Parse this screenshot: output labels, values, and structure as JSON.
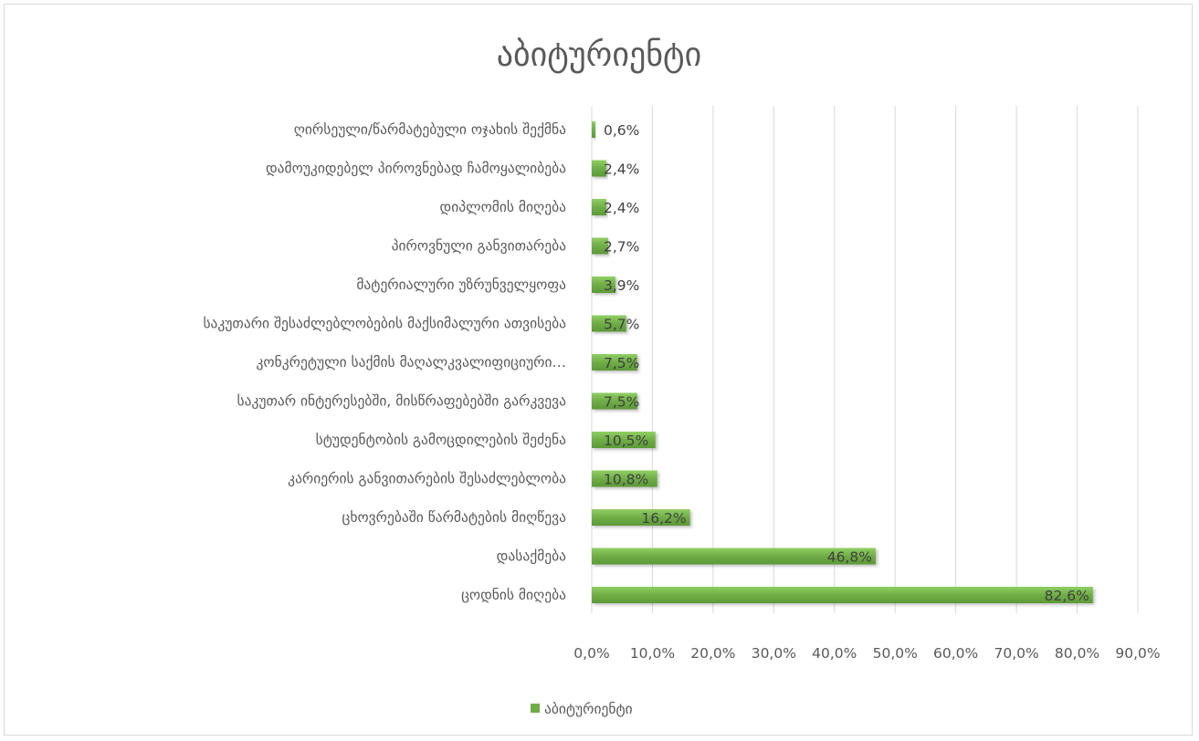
{
  "chart_data": {
    "type": "bar",
    "orientation": "horizontal",
    "title": "აბიტურიენტი",
    "categories": [
      "ცოდნის მიღება",
      "დასაქმება",
      "ცხოვრებაში წარმატების მიღწევა",
      "კარიერის განვითარების შესაძლებლობა",
      "სტუდენტობის გამოცდილების შეძენა",
      "საკუთარ ინტერესებში, მისწრაფებებში გარკვევა",
      "კონკრეტული საქმის მაღალკვალიფიციური…",
      "საკუთარი შესაძლებლობების მაქსიმალური ათვისება",
      "მატერიალური უზრუნველყოფა",
      "პიროვნული განვითარება",
      "დიპლომის მიღება",
      "დამოუკიდებელ პიროვნებად ჩამოყალიბება",
      "ღირსეული/წარმატებული ოჯახის შექმნა"
    ],
    "series": [
      {
        "name": "აბიტურიენტი",
        "values": [
          82.6,
          46.8,
          16.2,
          10.8,
          10.5,
          7.5,
          7.5,
          5.7,
          3.9,
          2.7,
          2.4,
          2.4,
          0.6
        ],
        "labels": [
          "82,6%",
          "46,8%",
          "16,2%",
          "10,8%",
          "10,5%",
          "7,5%",
          "7,5%",
          "5,7%",
          "3,9%",
          "2,7%",
          "2,4%",
          "2,4%",
          "0,6%"
        ]
      }
    ],
    "xlim": [
      0,
      90
    ],
    "xticks": [
      "0,0%",
      "10,0%",
      "20,0%",
      "30,0%",
      "40,0%",
      "50,0%",
      "60,0%",
      "70,0%",
      "80,0%",
      "90,0%"
    ],
    "grid": true,
    "legend": "bottom",
    "colors": {
      "bar": "#70ad47",
      "bar_light": "#8fd063",
      "bar_dark": "#5a9a36",
      "grid": "#d9d9d9",
      "text": "#595959"
    }
  }
}
